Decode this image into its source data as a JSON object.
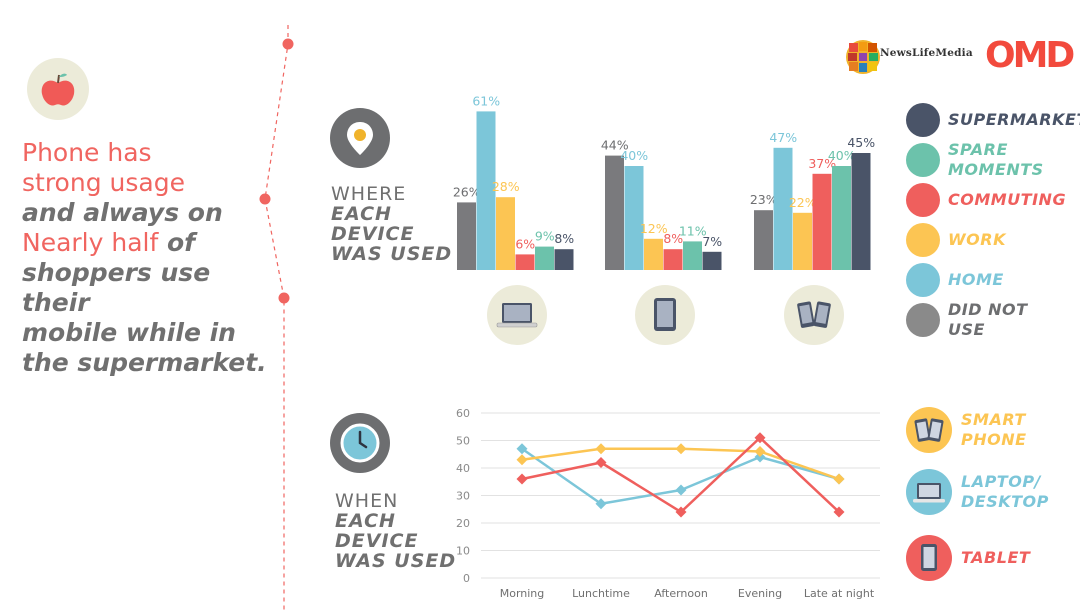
{
  "headline": {
    "line1": "Phone has",
    "line2": "strong usage",
    "line3": "and always on",
    "line4_red": "Nearly half",
    "line4_grey": " of",
    "line5": "shoppers use their",
    "line6": "mobile while in",
    "line7": "the supermarket."
  },
  "brands": {
    "newslifemedia": "NewsLifeMedia",
    "omd": "OMD"
  },
  "sections": {
    "where": {
      "l1": "WHERE",
      "l2": "EACH",
      "l3": "DEVICE",
      "l4": "WAS USED"
    },
    "when": {
      "l1": "WHEN",
      "l2": "EACH",
      "l3": "DEVICE",
      "l4": "WAS USED"
    }
  },
  "icons": {
    "header": "apple-icon",
    "where": "map-pin-icon",
    "when": "clock-icon",
    "devices": [
      "laptop-icon",
      "tablet-icon",
      "smartphone-icon"
    ]
  },
  "legend_where": [
    {
      "label": "SUPERMARKET",
      "color": "#4a5468"
    },
    {
      "label": "SPARE MOMENTS",
      "line1": "SPARE",
      "line2": "MOMENTS",
      "color": "#6cc2ab"
    },
    {
      "label": "COMMUTING",
      "color": "#ef5f5d"
    },
    {
      "label": "WORK",
      "color": "#fcc553"
    },
    {
      "label": "HOME",
      "color": "#7cc6d9"
    },
    {
      "label": "DID NOT USE",
      "line1": "DID NOT",
      "line2": "USE",
      "color": "#8a8a8a"
    }
  ],
  "legend_when": [
    {
      "label": "SMART PHONE",
      "line1": "SMART",
      "line2": "PHONE",
      "color": "#fcc553"
    },
    {
      "label": "LAPTOP/ DESKTOP",
      "line1": "LAPTOP/",
      "line2": "DESKTOP",
      "color": "#7cc6d9"
    },
    {
      "label": "TABLET",
      "line1": "TABLET",
      "line2": "",
      "color": "#ef5f5d"
    }
  ],
  "chart_data": [
    {
      "type": "bar",
      "categories": [
        "Laptop",
        "Tablet",
        "Smartphone"
      ],
      "series": [
        {
          "name": "DID NOT USE",
          "color": "#7a7a7d",
          "values": [
            26,
            44,
            23
          ]
        },
        {
          "name": "HOME",
          "color": "#7cc6d9",
          "values": [
            61,
            40,
            47
          ]
        },
        {
          "name": "WORK",
          "color": "#fcc553",
          "values": [
            28,
            12,
            22
          ]
        },
        {
          "name": "COMMUTING",
          "color": "#ef5f5d",
          "values": [
            6,
            8,
            37
          ]
        },
        {
          "name": "SPARE MOMENTS",
          "color": "#6cc2ab",
          "values": [
            9,
            11,
            40
          ]
        },
        {
          "name": "SUPERMARKET",
          "color": "#4a5468",
          "values": [
            8,
            7,
            45
          ]
        }
      ],
      "value_format": "{v}%"
    },
    {
      "type": "line",
      "x": [
        "Morning",
        "Lunchtime",
        "Afternoon",
        "Evening",
        "Late at night"
      ],
      "ylim": [
        0,
        60
      ],
      "yticks": [
        0,
        10,
        20,
        30,
        40,
        50,
        60
      ],
      "grid": true,
      "series": [
        {
          "name": "LAPTOP/ DESKTOP",
          "color": "#7cc6d9",
          "values": [
            47,
            27,
            32,
            44,
            36
          ]
        },
        {
          "name": "SMART PHONE",
          "color": "#fcc553",
          "values": [
            43,
            47,
            47,
            46,
            36
          ]
        },
        {
          "name": "TABLET",
          "color": "#ef5f5d",
          "values": [
            36,
            42,
            24,
            51,
            24
          ]
        }
      ]
    }
  ]
}
